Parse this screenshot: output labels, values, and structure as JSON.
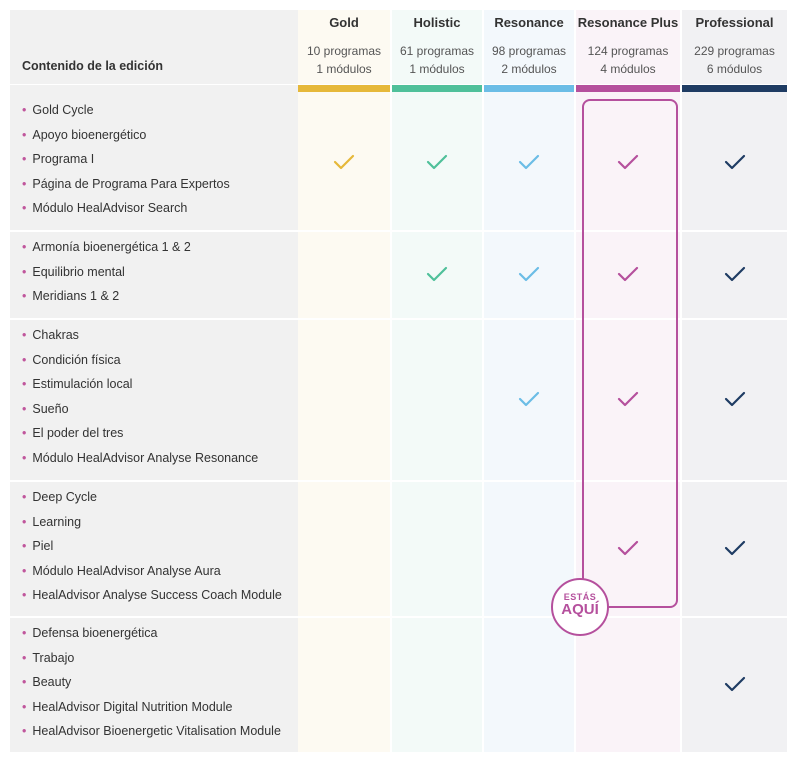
{
  "header": {
    "content_label": "Contenido de la edición"
  },
  "editions": [
    {
      "name": "Gold",
      "programs": "10 programas",
      "modules": "1 módulos",
      "color": "#e6b83a",
      "bg": "#fdfaf2"
    },
    {
      "name": "Holistic",
      "programs": "61 programas",
      "modules": "1 módulos",
      "color": "#4fc09a",
      "bg": "#f3faf8"
    },
    {
      "name": "Resonance",
      "programs": "98 programas",
      "modules": "2 módulos",
      "color": "#6bbde6",
      "bg": "#f3f8fc"
    },
    {
      "name": "Resonance Plus",
      "programs": "124 programas",
      "modules": "4 módulos",
      "color": "#b5509d",
      "bg": "#faf3f8"
    },
    {
      "name": "Professional",
      "programs": "229 programas",
      "modules": "6 módulos",
      "color": "#1f3c63",
      "bg": "#f1f1f3"
    }
  ],
  "groups": [
    {
      "features": [
        "Gold Cycle",
        "Apoyo bioenergético",
        "Programa I",
        "Página de Programa Para Expertos",
        "Módulo HealAdvisor Search"
      ],
      "included": [
        true,
        true,
        true,
        true,
        true
      ]
    },
    {
      "features": [
        "Armonía bioenergética 1 & 2",
        "Equilibrio mental",
        "Meridians 1 & 2"
      ],
      "included": [
        false,
        true,
        true,
        true,
        true
      ]
    },
    {
      "features": [
        "Chakras",
        "Condición física",
        "Estimulación local",
        "Sueño",
        "El poder del tres",
        "Módulo HealAdvisor Analyse Resonance"
      ],
      "included": [
        false,
        false,
        true,
        true,
        true
      ]
    },
    {
      "features": [
        "Deep Cycle",
        "Learning",
        "Piel",
        "Módulo HealAdvisor Analyse Aura",
        "HealAdvisor Analyse Success Coach Module"
      ],
      "included": [
        false,
        false,
        false,
        true,
        true
      ]
    },
    {
      "features": [
        "Defensa bioenergética",
        "Trabajo",
        "Beauty",
        "HealAdvisor Digital Nutrition Module",
        "HealAdvisor Bioenergetic Vitalisation Module"
      ],
      "included": [
        false,
        false,
        false,
        false,
        true
      ]
    }
  ],
  "badge": {
    "line1": "ESTÁS",
    "line2": "AQUÍ",
    "color": "#b5509d"
  }
}
